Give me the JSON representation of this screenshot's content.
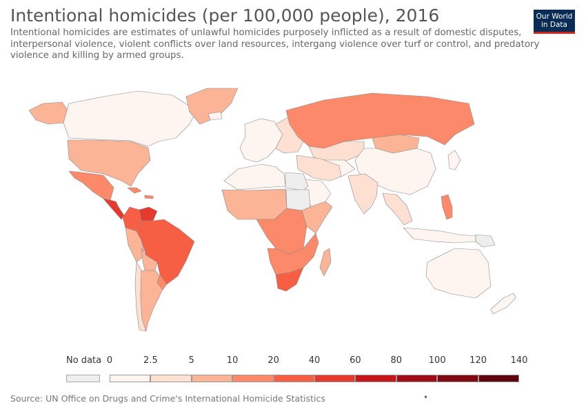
{
  "header": {
    "title": "Intentional homicides (per 100,000 people), 2016",
    "subtitle": "Intentional homicides are estimates of unlawful homicides purposely inflicted as a result of domestic disputes, interpersonal violence, violent conflicts over land resources, intergang violence over turf or control, and predatory violence and killing by armed groups.",
    "logo_line1": "Our World",
    "logo_line2": "in Data"
  },
  "legend": {
    "nodata_label": "No data",
    "nodata_color": "#eeeeee",
    "tick_labels": [
      "0",
      "2.5",
      "5",
      "10",
      "20",
      "40",
      "60",
      "80",
      "100",
      "120",
      "140"
    ],
    "bin_colors": [
      "#fff5f0",
      "#fde0d2",
      "#fcb497",
      "#fc8a6a",
      "#f65f44",
      "#e53a2e",
      "#c4161b",
      "#a10d16",
      "#7e0a12",
      "#5e0510"
    ]
  },
  "footer": {
    "source": "Source: UN Office on Drugs and Crime's International Homicide Statistics",
    "dot": "•"
  },
  "map_data": {
    "regions": [
      {
        "name": "Canada",
        "bin": 0
      },
      {
        "name": "Alaska",
        "bin": 2
      },
      {
        "name": "Greenland",
        "bin": 2
      },
      {
        "name": "United States",
        "bin": 2
      },
      {
        "name": "Mexico",
        "bin": 3
      },
      {
        "name": "Central America",
        "bin": 5
      },
      {
        "name": "Caribbean",
        "bin": 3
      },
      {
        "name": "Colombia",
        "bin": 4
      },
      {
        "name": "Venezuela",
        "bin": 5
      },
      {
        "name": "Brazil",
        "bin": 4
      },
      {
        "name": "Peru",
        "bin": 2
      },
      {
        "name": "Bolivia",
        "bin": 2
      },
      {
        "name": "Chile",
        "bin": 1
      },
      {
        "name": "Argentina",
        "bin": 2
      },
      {
        "name": "Uruguay",
        "bin": 3
      },
      {
        "name": "Iceland",
        "bin": 0
      },
      {
        "name": "Western Europe",
        "bin": 0
      },
      {
        "name": "Eastern Europe",
        "bin": 1
      },
      {
        "name": "Russia",
        "bin": 3
      },
      {
        "name": "Kazakhstan",
        "bin": 1
      },
      {
        "name": "Central Asia",
        "bin": 0
      },
      {
        "name": "Mongolia",
        "bin": 2
      },
      {
        "name": "China",
        "bin": 0
      },
      {
        "name": "Japan",
        "bin": 0
      },
      {
        "name": "Middle East",
        "bin": 1
      },
      {
        "name": "Arabian Peninsula",
        "bin": 0
      },
      {
        "name": "India",
        "bin": 1
      },
      {
        "name": "Southeast Asia",
        "bin": 1
      },
      {
        "name": "Philippines",
        "bin": 3
      },
      {
        "name": "Indonesia",
        "bin": 0
      },
      {
        "name": "Papua New Guinea",
        "bin": -1
      },
      {
        "name": "North Africa",
        "bin": 0
      },
      {
        "name": "Libya",
        "bin": -1
      },
      {
        "name": "Sudan",
        "bin": -1
      },
      {
        "name": "West Africa",
        "bin": 2
      },
      {
        "name": "Central Africa",
        "bin": 3
      },
      {
        "name": "East Africa",
        "bin": 2
      },
      {
        "name": "Southern Africa",
        "bin": 3
      },
      {
        "name": "South Africa",
        "bin": 4
      },
      {
        "name": "Madagascar",
        "bin": 2
      },
      {
        "name": "Australia",
        "bin": 0
      },
      {
        "name": "New Zealand",
        "bin": 0
      }
    ]
  }
}
